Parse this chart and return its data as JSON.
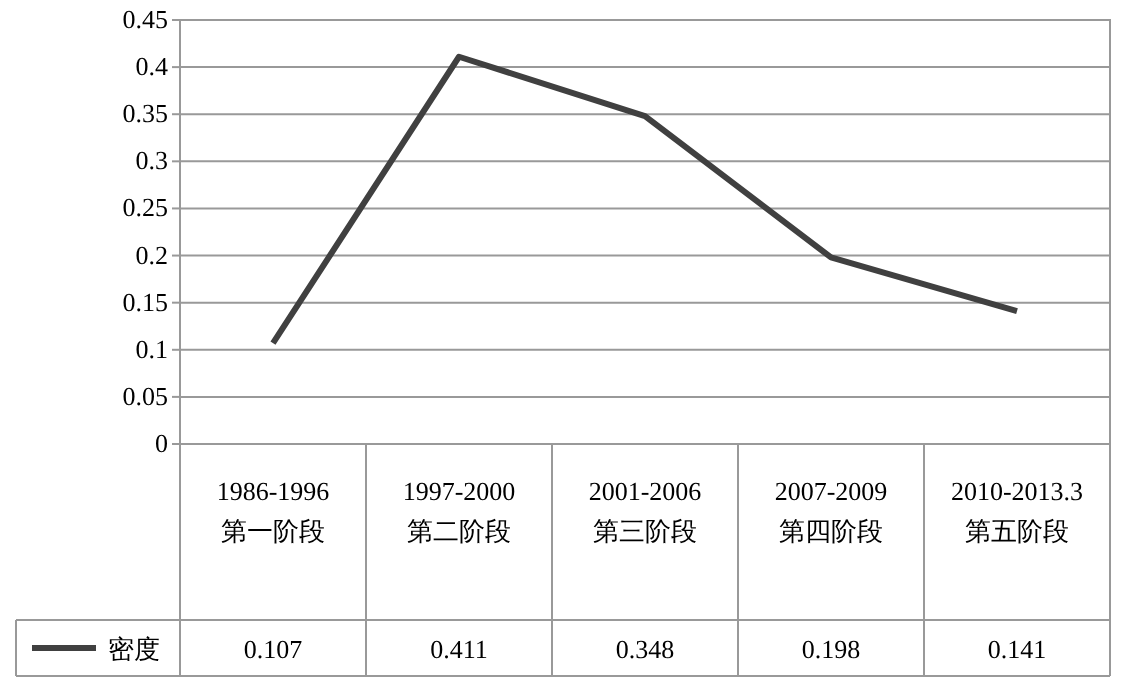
{
  "chart_data": {
    "type": "line",
    "categories": [
      "1986-1996 第一阶段",
      "1997-2000 第二阶段",
      "2001-2006 第三阶段",
      "2007-2009 第四阶段",
      "2010-2013.3 第五阶段"
    ],
    "series": [
      {
        "name": "密度",
        "color": "#404040",
        "values": [
          0.107,
          0.411,
          0.348,
          0.198,
          0.141
        ]
      }
    ],
    "ylim": [
      0,
      0.45
    ],
    "yticks": [
      0,
      0.05,
      0.1,
      0.15,
      0.2,
      0.25,
      0.3,
      0.35,
      0.4,
      0.45
    ],
    "grid": "y",
    "legend": "bottom",
    "data_labels": true,
    "marker": "none",
    "line_style": "solid"
  }
}
